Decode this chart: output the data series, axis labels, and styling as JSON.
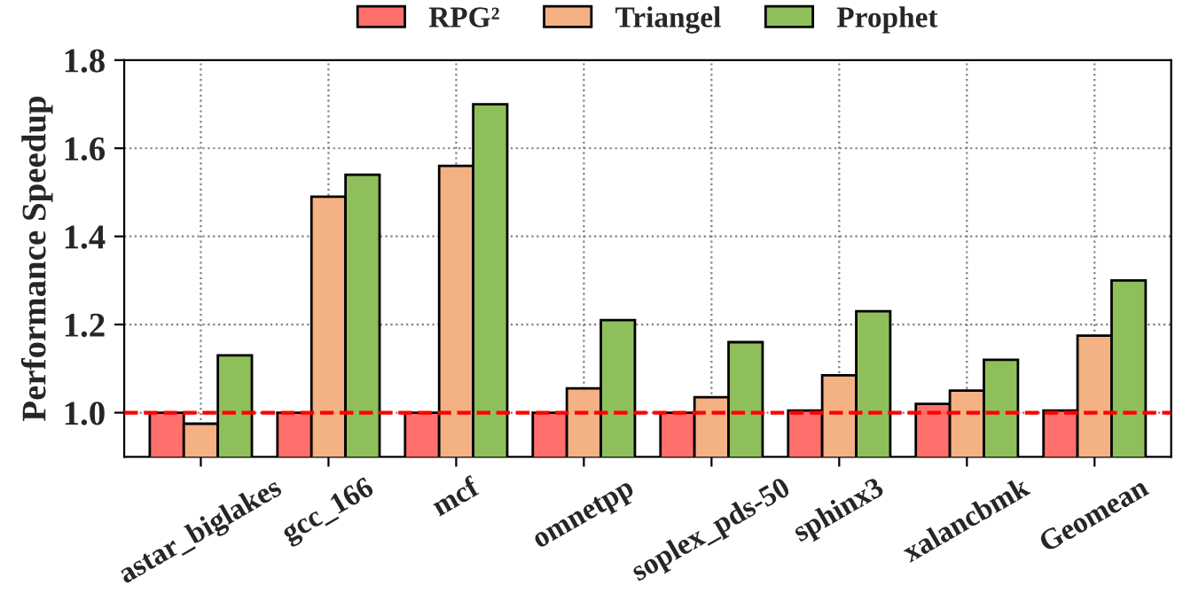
{
  "chart_data": {
    "type": "bar",
    "ylabel": "Performance Speedup",
    "categories": [
      "astar_biglakes",
      "gcc_166",
      "mcf",
      "omnetpp",
      "soplex_pds-50",
      "sphinx3",
      "xalancbmk",
      "Geomean"
    ],
    "series": [
      {
        "name": "RPG²",
        "color": "#ff6f6b",
        "values": [
          1.0,
          1.0,
          1.0,
          1.0,
          1.0,
          1.005,
          1.02,
          1.005
        ]
      },
      {
        "name": "Triangel",
        "color": "#f4b183",
        "values": [
          0.975,
          1.49,
          1.56,
          1.055,
          1.035,
          1.085,
          1.05,
          1.175
        ]
      },
      {
        "name": "Prophet",
        "color": "#8fbf5a",
        "values": [
          1.13,
          1.54,
          1.7,
          1.21,
          1.16,
          1.23,
          1.12,
          1.3
        ]
      }
    ],
    "ylim": [
      0.9,
      1.8
    ],
    "yticks": [
      {
        "value": 1.0,
        "label": "1.0"
      },
      1.2,
      1.4,
      1.6,
      1.8
    ],
    "ref_lines": [
      {
        "axis": "y",
        "value": 1.0,
        "color": "#ff0000",
        "line_style": "dashed"
      }
    ],
    "grid": true,
    "legend": "top"
  }
}
